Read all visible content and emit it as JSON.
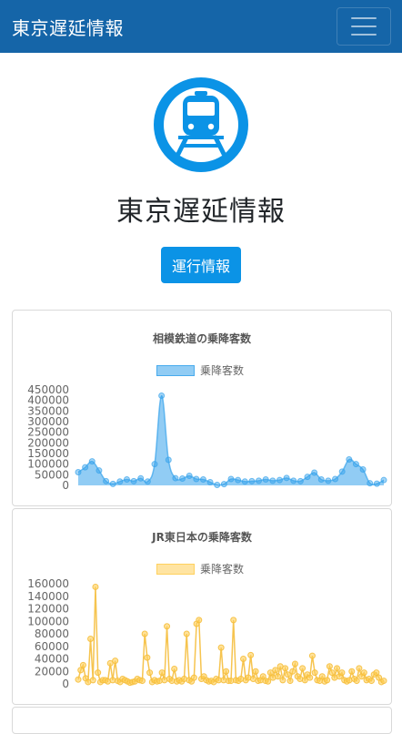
{
  "navbar": {
    "brand": "東京遅延情報"
  },
  "hero": {
    "title": "東京遅延情報",
    "button_label": "運行情報"
  },
  "chart_data": [
    {
      "type": "area",
      "title": "相模鉄道の乗降客数",
      "series": [
        {
          "name": "乗降客数",
          "color": "#36a2eb"
        }
      ],
      "y_ticks": [
        "450000",
        "400000",
        "350000",
        "300000",
        "250000",
        "200000",
        "150000",
        "100000",
        "50000",
        "0"
      ],
      "ylim": [
        0,
        450000
      ],
      "values": [
        62000,
        85000,
        113000,
        70000,
        20000,
        7000,
        18000,
        28000,
        20000,
        33000,
        18000,
        100000,
        422000,
        120000,
        34000,
        32000,
        45000,
        30000,
        28000,
        15000,
        2000,
        6000,
        30000,
        25000,
        18000,
        20000,
        22000,
        28000,
        22000,
        25000,
        35000,
        22000,
        20000,
        40000,
        60000,
        28000,
        22000,
        30000,
        65000,
        122000,
        100000,
        75000,
        10000,
        8000,
        25000
      ]
    },
    {
      "type": "line",
      "title": "JR東日本の乗降客数",
      "series": [
        {
          "name": "乗降客数",
          "color": "#ffce56"
        }
      ],
      "y_ticks": [
        "160000",
        "140000",
        "120000",
        "100000",
        "80000",
        "60000",
        "40000",
        "20000",
        "0"
      ],
      "ylim": [
        0,
        160000
      ],
      "values": [
        7000,
        22000,
        30000,
        9000,
        3000,
        72000,
        6000,
        155000,
        18000,
        3000,
        6000,
        6000,
        4000,
        33000,
        6000,
        37000,
        5000,
        3000,
        8000,
        6000,
        4000,
        2000,
        3000,
        4000,
        8000,
        6000,
        5000,
        80000,
        42000,
        18000,
        3000,
        6000,
        4000,
        5000,
        18000,
        6000,
        92000,
        8000,
        5000,
        24000,
        4000,
        6000,
        4000,
        8000,
        80000,
        6000,
        4000,
        10000,
        96000,
        102000,
        8000,
        12000,
        6000,
        4000,
        5000,
        3000,
        8000,
        6000,
        58000,
        6000,
        20000,
        5000,
        5000,
        102000,
        6000,
        5000,
        8000,
        40000,
        6000,
        10000,
        46000,
        8000,
        20000,
        5000,
        6000,
        12000,
        5000,
        4000,
        18000,
        10000,
        22000,
        12000,
        28000,
        6000,
        25000,
        15000,
        5000,
        20000,
        32000,
        12000,
        8000,
        25000,
        6000,
        15000,
        10000,
        45000,
        18000,
        6000,
        5000,
        12000,
        4000,
        6000,
        28000,
        18000,
        10000,
        25000,
        12000,
        18000,
        6000,
        4000,
        6000,
        20000,
        8000,
        5000,
        25000,
        12000,
        18000,
        6000,
        8000,
        5000,
        15000,
        18000,
        10000,
        3000,
        5000
      ]
    }
  ],
  "colors": {
    "navbar": "#1565a8",
    "primary_button": "#0b93e6",
    "logo": "#0b93e6"
  },
  "icons": {
    "menu": "hamburger-icon",
    "logo": "train-icon"
  }
}
